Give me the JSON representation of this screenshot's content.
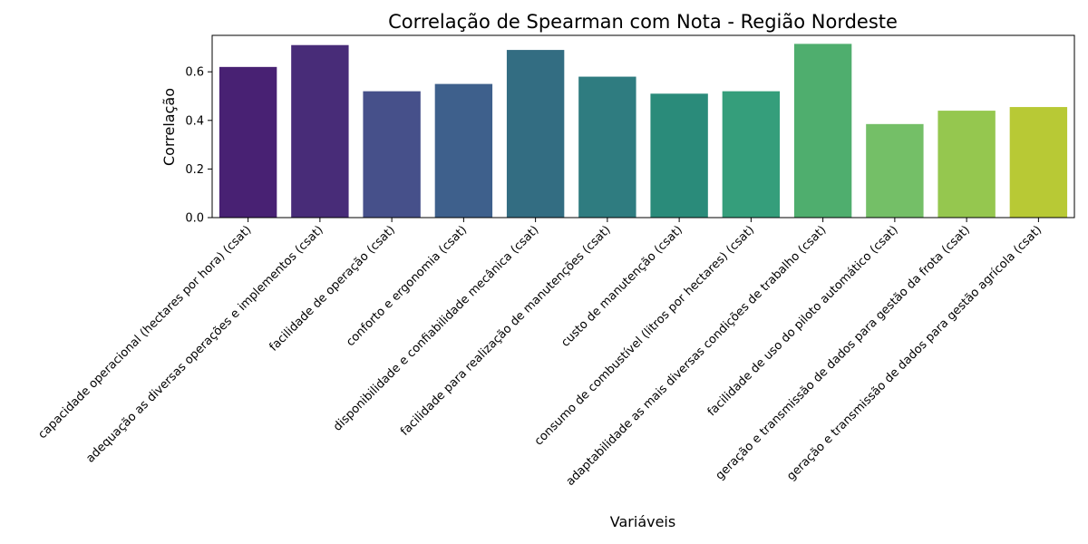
{
  "chart_data": {
    "type": "bar",
    "title": "Correlação de Spearman com Nota - Região Nordeste",
    "xlabel": "Variáveis",
    "ylabel": "Correlação",
    "ylim": [
      0,
      0.75
    ],
    "yticks": [
      "0.0",
      "0.2",
      "0.4",
      "0.6"
    ],
    "grid": false,
    "categories": [
      "capacidade operacional (hectares por hora) (csat)",
      "adequação as diversas operações e implementos (csat)",
      "facilidade de operação (csat)",
      "conforto e ergonomia (csat)",
      "disponibilidade e confiabilidade mecânica  (csat)",
      "facilidade para realização de manutenções (csat)",
      "custo de manutenção (csat)",
      "consumo de combustível (litros por hectares) (csat)",
      "adaptabilidade as mais diversas condições de trabalho (csat)",
      "facilidade de uso do piloto automático (csat)",
      "geração e transmissão de dados para gestão da frota (csat)",
      "geração e transmissão de dados para gestão agrícola (csat)"
    ],
    "values": [
      0.62,
      0.71,
      0.52,
      0.55,
      0.69,
      0.58,
      0.51,
      0.52,
      0.715,
      0.385,
      0.44,
      0.455
    ],
    "colors": [
      "#482173",
      "#482c78",
      "#46508a",
      "#3e608c",
      "#336d82",
      "#2f7c80",
      "#2a8b7a",
      "#359e7b",
      "#4fae6e",
      "#74bf67",
      "#95c74f",
      "#b8c935"
    ]
  }
}
